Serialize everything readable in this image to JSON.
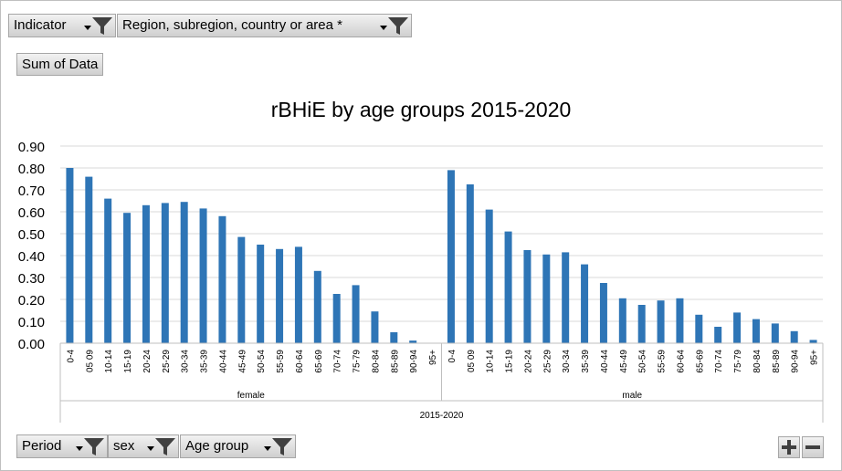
{
  "filters_top": [
    {
      "label": "Indicator"
    },
    {
      "label": "Region, subregion, country or area *"
    }
  ],
  "value_field": "Sum of Data",
  "filters_bottom": [
    {
      "label": "Period"
    },
    {
      "label": "sex"
    },
    {
      "label": "Age group"
    }
  ],
  "zoom": {
    "plus": "+",
    "minus": "−"
  },
  "colors": {
    "bar": "#2e75b6",
    "grid": "#d9d9d9",
    "axis": "#bfbfbf"
  },
  "chart_data": {
    "type": "bar",
    "title": "rBHiE by age groups 2015-2020",
    "ylim": [
      0,
      0.9
    ],
    "yticks": [
      "0.00",
      "0.10",
      "0.20",
      "0.30",
      "0.40",
      "0.50",
      "0.60",
      "0.70",
      "0.80",
      "0.90"
    ],
    "grid": true,
    "period": "2015-2020",
    "groups": [
      {
        "name": "female",
        "categories": [
          "0-4",
          "05 09",
          "10-14",
          "15-19",
          "20-24",
          "25-29",
          "30-34",
          "35-39",
          "40-44",
          "45-49",
          "50-54",
          "55-59",
          "60-64",
          "65-69",
          "70-74",
          "75-79",
          "80-84",
          "85-89",
          "90-94",
          "95+"
        ],
        "values": [
          0.8,
          0.76,
          0.66,
          0.595,
          0.63,
          0.64,
          0.645,
          0.615,
          0.58,
          0.485,
          0.45,
          0.43,
          0.44,
          0.33,
          0.225,
          0.265,
          0.145,
          0.05,
          0.012,
          0
        ]
      },
      {
        "name": "male",
        "categories": [
          "0-4",
          "05 09",
          "10-14",
          "15-19",
          "20-24",
          "25-29",
          "30-34",
          "35-39",
          "40-44",
          "45-49",
          "50-54",
          "55-59",
          "60-64",
          "65-69",
          "70-74",
          "75-79",
          "80-84",
          "85-89",
          "90-94",
          "95+"
        ],
        "values": [
          0.79,
          0.725,
          0.61,
          0.51,
          0.425,
          0.405,
          0.415,
          0.36,
          0.275,
          0.205,
          0.175,
          0.195,
          0.205,
          0.13,
          0.075,
          0.14,
          0.11,
          0.09,
          0.055,
          0.015
        ]
      }
    ]
  }
}
